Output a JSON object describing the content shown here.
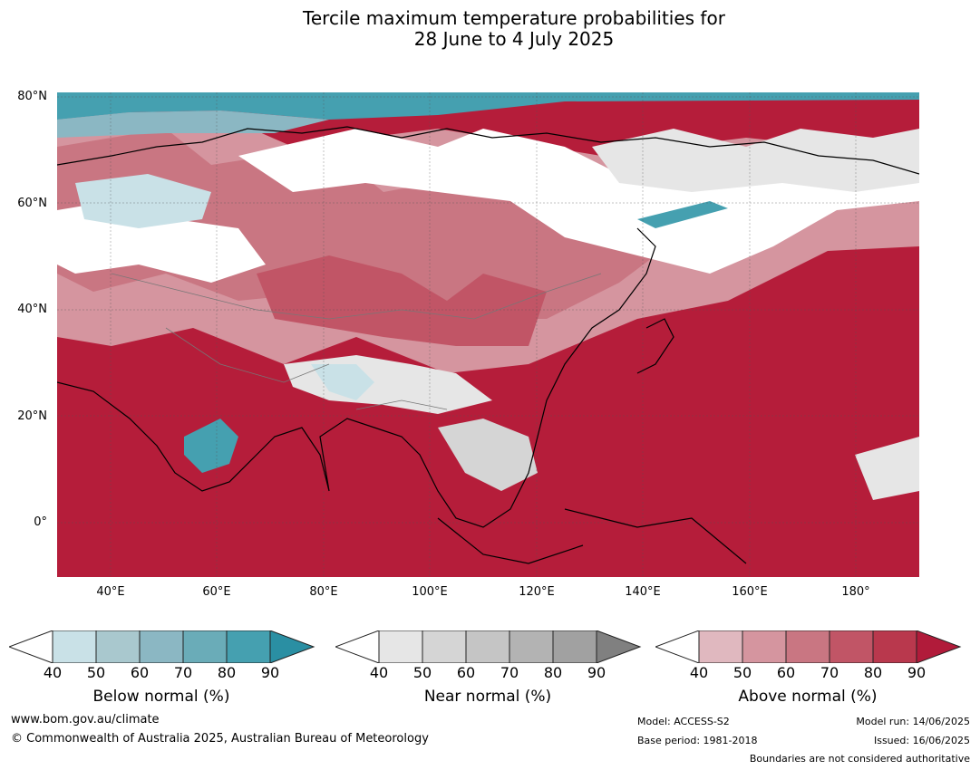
{
  "title_line1": "Tercile maximum temperature probabilities for",
  "title_line2": "28 June to 4 July 2025",
  "lat_labels": [
    "80°N",
    "60°N",
    "40°N",
    "20°N",
    "0°"
  ],
  "lon_labels": [
    "40°E",
    "60°E",
    "80°E",
    "100°E",
    "120°E",
    "140°E",
    "160°E",
    "180°"
  ],
  "colorbars": [
    {
      "label": "Below normal (%)",
      "ticks": [
        "40",
        "50",
        "60",
        "70",
        "80",
        "90"
      ],
      "colors": [
        "#ffffff",
        "#c9e1e7",
        "#a9c8ce",
        "#8bb7c3",
        "#6aacb8",
        "#45a0b0",
        "#2a8fa3"
      ]
    },
    {
      "label": "Near normal (%)",
      "ticks": [
        "40",
        "50",
        "60",
        "70",
        "80",
        "90"
      ],
      "colors": [
        "#ffffff",
        "#e6e6e6",
        "#d5d5d5",
        "#c5c5c5",
        "#b3b3b3",
        "#a1a1a1",
        "#808080"
      ]
    },
    {
      "label": "Above normal (%)",
      "ticks": [
        "40",
        "50",
        "60",
        "70",
        "80",
        "90"
      ],
      "colors": [
        "#ffffff",
        "#e0b8bf",
        "#d5959f",
        "#c97682",
        "#c15566",
        "#b9384d",
        "#b11b3a"
      ]
    }
  ],
  "footer": {
    "website": "www.bom.gov.au/climate",
    "copyright": "© Commonwealth of Australia 2025, Australian Bureau of Meteorology",
    "model": "Model: ACCESS-S2",
    "base_period": "Base period: 1981-2018",
    "model_run": "Model run: 14/06/2025",
    "issued": "Issued: 16/06/2025",
    "disclaimer": "Boundaries are not considered authoritative"
  }
}
